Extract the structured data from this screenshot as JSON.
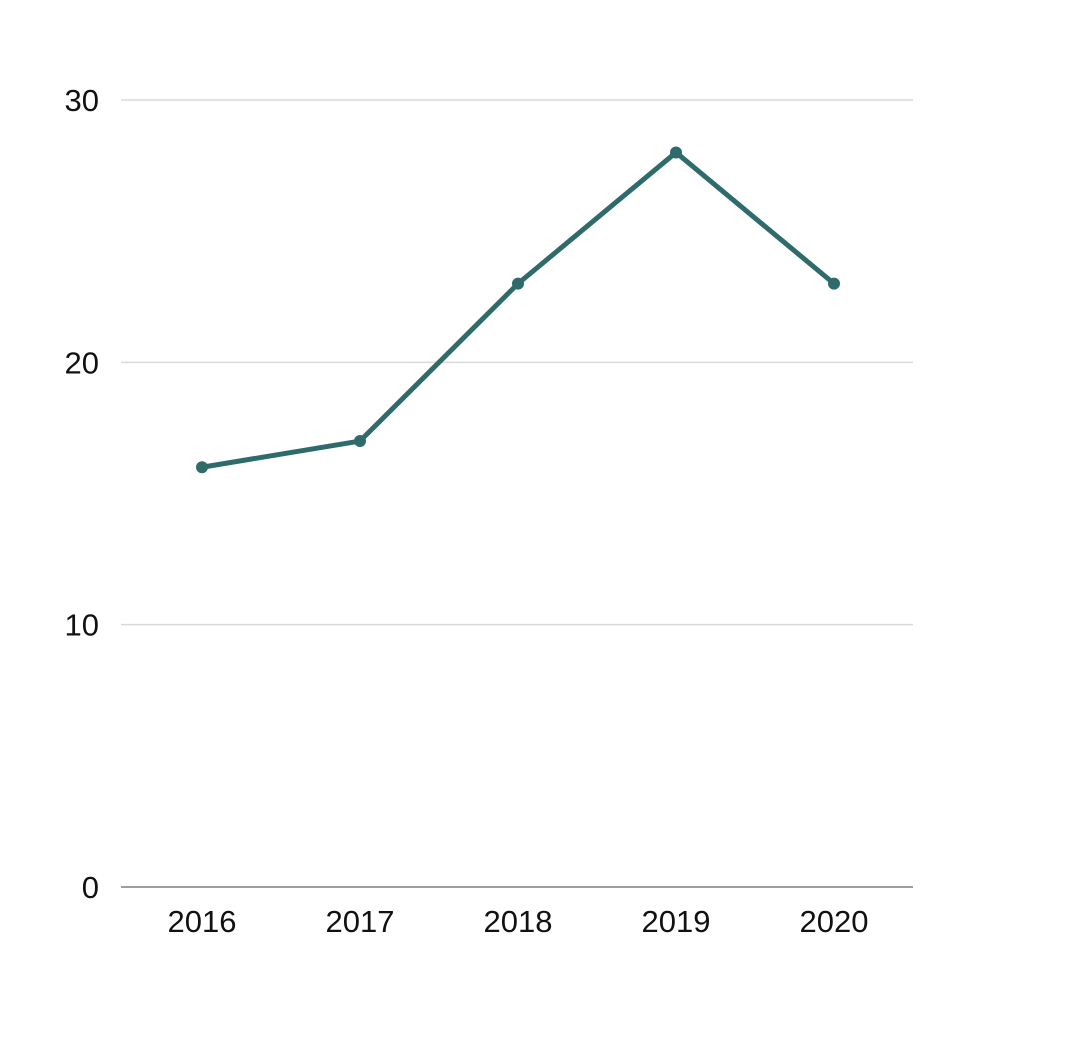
{
  "chart_data": {
    "type": "line",
    "title": "",
    "xlabel": "",
    "ylabel": "",
    "x": [
      "2016",
      "2017",
      "2018",
      "2019",
      "2020"
    ],
    "series": [
      {
        "name": "series-1",
        "values": [
          16,
          17,
          23,
          28,
          23
        ]
      }
    ],
    "ylim": [
      0,
      30
    ],
    "yticks": [
      0,
      10,
      20,
      30
    ],
    "grid": true,
    "legend": false,
    "colors": {
      "line": "#2f6b6b",
      "point": "#2f6b6b",
      "gridline": "#d9d9d9",
      "baseline": "#9e9e9e",
      "tick_label": "#111111",
      "background": "#ffffff"
    }
  }
}
